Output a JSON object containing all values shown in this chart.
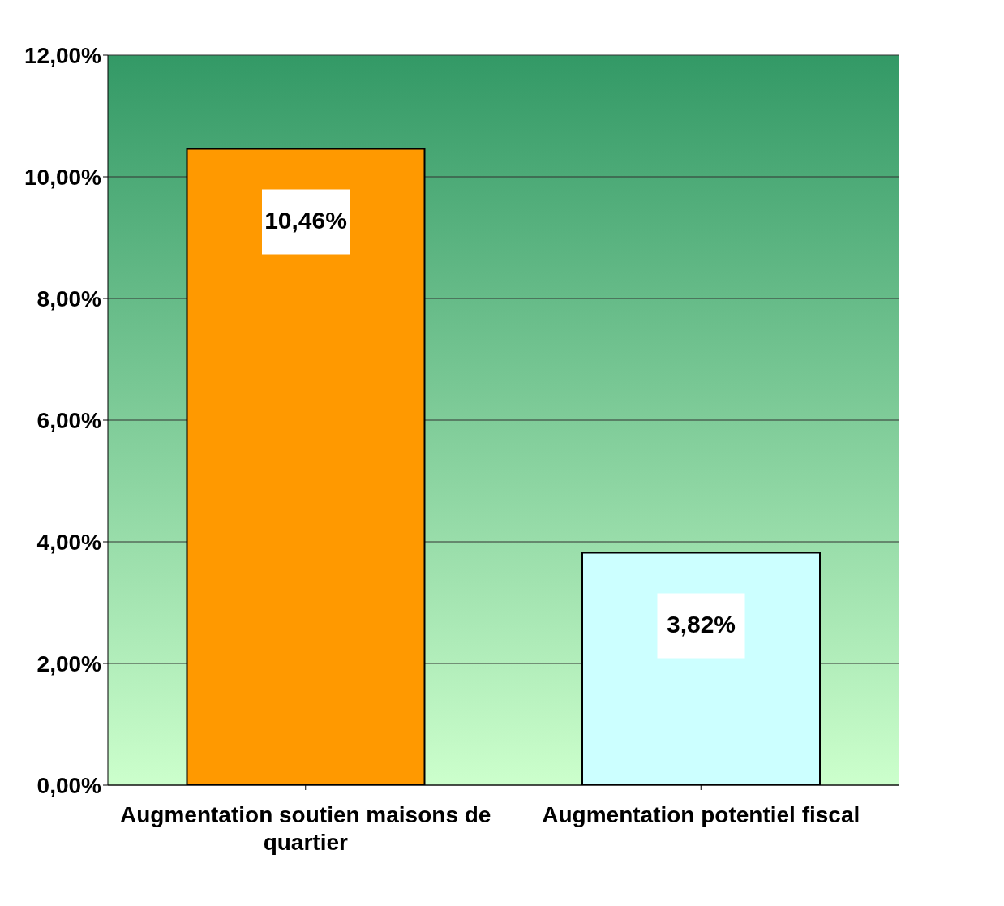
{
  "chart_data": {
    "type": "bar",
    "categories": [
      "Augmentation soutien maisons de quartier",
      "Augmentation potentiel fiscal"
    ],
    "values": [
      10.46,
      3.82
    ],
    "colors": [
      "#ff9900",
      "#ccffff"
    ],
    "value_labels": [
      "10,46%",
      "3,82%"
    ],
    "ylim": [
      0,
      12
    ],
    "yticks": [
      {
        "value": 0,
        "label": "0,00%"
      },
      {
        "value": 2,
        "label": "2,00%"
      },
      {
        "value": 4,
        "label": "4,00%"
      },
      {
        "value": 6,
        "label": "6,00%"
      },
      {
        "value": 8,
        "label": "8,00%"
      },
      {
        "value": 10,
        "label": "10,00%"
      },
      {
        "value": 12,
        "label": "12,00%"
      }
    ],
    "grid": "y"
  }
}
